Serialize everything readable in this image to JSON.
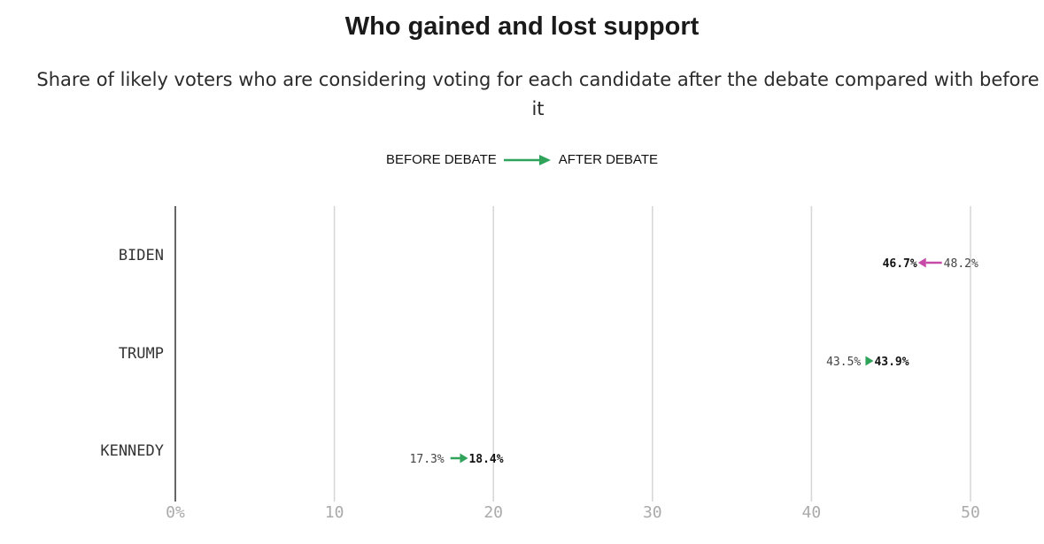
{
  "chart_data": {
    "type": "arrow",
    "title": "Who gained and lost support",
    "subtitle": "Share of likely voters who are considering voting for each candidate after the debate compared with before it",
    "legend": {
      "before_label": "BEFORE DEBATE",
      "after_label": "AFTER DEBATE",
      "placement": "top-center"
    },
    "categories": [
      "BIDEN",
      "TRUMP",
      "KENNEDY"
    ],
    "series": [
      {
        "name": "BEFORE DEBATE",
        "values": [
          48.2,
          43.5,
          17.3
        ],
        "labels": [
          "48.2%",
          "43.5%",
          "17.3%"
        ]
      },
      {
        "name": "AFTER DEBATE",
        "values": [
          46.7,
          43.9,
          18.4
        ],
        "labels": [
          "46.7%",
          "43.9%",
          "18.4%"
        ]
      }
    ],
    "xlim": [
      0,
      50
    ],
    "x_ticks": [
      0,
      10,
      20,
      30,
      40,
      50
    ],
    "x_tick_labels": [
      "0%",
      "10",
      "20",
      "30",
      "40",
      "50"
    ],
    "grid": true,
    "colors": {
      "gain": "#2fa35a",
      "loss": "#c84aa8",
      "grid": "#d6d6d6",
      "axis": "#333333"
    }
  }
}
